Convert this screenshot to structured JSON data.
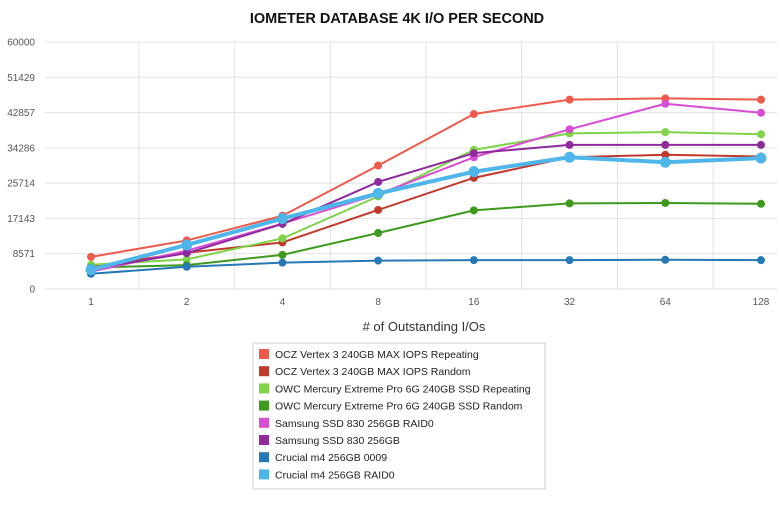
{
  "chart_data": {
    "type": "line",
    "title": "IOMETER DATABASE 4K I/O PER SECOND",
    "xlabel": "# of Outstanding I/Os",
    "ylabel": "",
    "categories": [
      "1",
      "2",
      "4",
      "8",
      "16",
      "32",
      "64",
      "128"
    ],
    "y_ticks": [
      "0",
      "8571",
      "17143",
      "25714",
      "34286",
      "42857",
      "51429",
      "60000"
    ],
    "ylim": [
      0,
      60000
    ],
    "grid": true,
    "legend_position": "bottom",
    "series": [
      {
        "name": "OCZ Vertex 3 240GB MAX IOPS Repeating",
        "color": "#ec5b4b",
        "values": [
          7800,
          11800,
          17800,
          30000,
          42500,
          46000,
          46300,
          46000
        ]
      },
      {
        "name": "OCZ Vertex 3 240GB MAX IOPS Random",
        "color": "#c0392b",
        "values": [
          5500,
          8800,
          11300,
          19200,
          27000,
          32000,
          32600,
          32200
        ]
      },
      {
        "name": "OWC Mercury Extreme Pro 6G 240GB SSD Repeating",
        "color": "#7ed348",
        "values": [
          5900,
          7200,
          12300,
          22500,
          33800,
          37800,
          38100,
          37600
        ]
      },
      {
        "name": "OWC Mercury Extreme Pro 6G 240GB SSD Random",
        "color": "#3e9a1f",
        "values": [
          5200,
          5800,
          8300,
          13600,
          19100,
          20800,
          20900,
          20700
        ]
      },
      {
        "name": "Samsung SSD 830 256GB RAID0",
        "color": "#d84ed3",
        "values": [
          4200,
          9300,
          15900,
          23000,
          32000,
          38800,
          45000,
          42800
        ]
      },
      {
        "name": "Samsung SSD 830 256GB",
        "color": "#8e2a9c",
        "values": [
          4900,
          8700,
          15800,
          26000,
          33000,
          35000,
          35000,
          35000
        ]
      },
      {
        "name": "Crucial m4 256GB 0009",
        "color": "#2679b5",
        "values": [
          3700,
          5400,
          6400,
          6900,
          7000,
          7000,
          7100,
          7000
        ]
      },
      {
        "name": "Crucial m4 256GB RAID0",
        "color": "#4fb6ea",
        "values": [
          4700,
          10700,
          17100,
          23200,
          28500,
          32000,
          30800,
          31800
        ]
      }
    ]
  }
}
